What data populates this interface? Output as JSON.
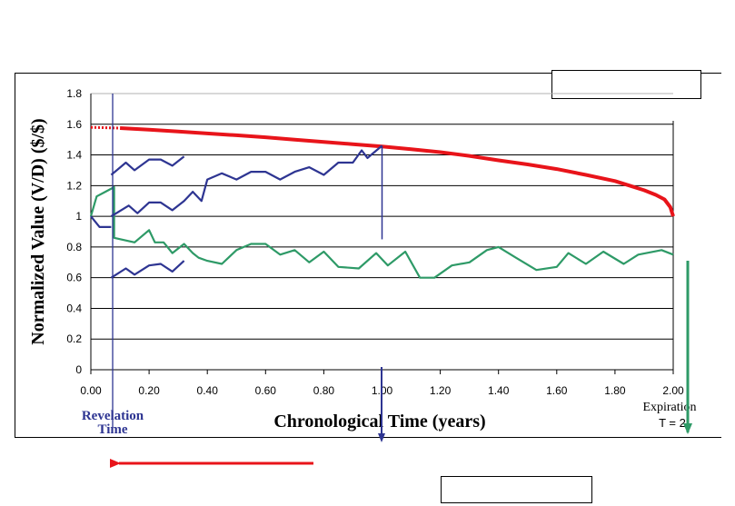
{
  "chart_data": {
    "type": "line",
    "ylabel": "Normalized Value (V/D) ($/$)",
    "xlabel": "Chronological Time (years)",
    "xlim": [
      0,
      2
    ],
    "ylim": [
      0,
      1.8
    ],
    "xticks": [
      "0.00",
      "0.20",
      "0.40",
      "0.60",
      "0.80",
      "1.00",
      "1.20",
      "1.40",
      "1.60",
      "1.80",
      "2.00"
    ],
    "yticks": [
      "0",
      "0.2",
      "0.4",
      "0.6",
      "0.8",
      "1",
      "1.2",
      "1.4",
      "1.6",
      "1.8"
    ],
    "grid": "horizontal",
    "annotations": {
      "revelation_line1": "Revelation",
      "revelation_line2": "Time",
      "expiration_line1": "Expiration",
      "expiration_line2": "T = 2"
    },
    "series": [
      {
        "color": "#e8141a",
        "style": "thick",
        "x": [
          0.0,
          0.1,
          0.2,
          0.3,
          0.4,
          0.5,
          0.6,
          0.7,
          0.8,
          0.9,
          1.0,
          1.1,
          1.2,
          1.3,
          1.4,
          1.5,
          1.6,
          1.7,
          1.8,
          1.85,
          1.9,
          1.94,
          1.97,
          1.99,
          2.0
        ],
        "y": [
          1.58,
          1.575,
          1.565,
          1.553,
          1.54,
          1.528,
          1.515,
          1.5,
          1.485,
          1.47,
          1.455,
          1.437,
          1.418,
          1.394,
          1.365,
          1.338,
          1.308,
          1.27,
          1.23,
          1.2,
          1.17,
          1.14,
          1.11,
          1.06,
          1.0
        ]
      },
      {
        "color": "#2e9a67",
        "x": [
          0.0,
          0.02,
          0.05,
          0.08,
          0.08,
          0.15,
          0.2,
          0.22,
          0.25,
          0.28,
          0.32,
          0.35,
          0.37,
          0.4,
          0.45,
          0.5,
          0.55,
          0.6,
          0.65,
          0.7,
          0.75,
          0.8,
          0.85,
          0.92,
          0.98,
          1.02,
          1.08,
          1.13,
          1.18,
          1.24,
          1.3,
          1.36,
          1.4,
          1.46,
          1.53,
          1.6,
          1.64,
          1.7,
          1.76,
          1.83,
          1.88,
          1.96,
          2.0
        ],
        "y": [
          1.0,
          1.13,
          1.16,
          1.19,
          0.86,
          0.83,
          0.91,
          0.83,
          0.83,
          0.76,
          0.82,
          0.76,
          0.73,
          0.71,
          0.69,
          0.78,
          0.82,
          0.82,
          0.75,
          0.78,
          0.7,
          0.77,
          0.67,
          0.66,
          0.76,
          0.68,
          0.77,
          0.6,
          0.6,
          0.68,
          0.7,
          0.78,
          0.8,
          0.73,
          0.65,
          0.67,
          0.76,
          0.69,
          0.77,
          0.69,
          0.75,
          0.78,
          0.75
        ]
      },
      {
        "color": "#2e3592",
        "x": [
          0.0,
          0.03,
          0.07
        ],
        "y": [
          1.0,
          0.93,
          0.93
        ]
      },
      {
        "color": "#2e3592",
        "x": [
          0.07,
          0.12,
          0.15,
          0.2,
          0.24,
          0.28,
          0.32
        ],
        "y": [
          1.27,
          1.35,
          1.3,
          1.37,
          1.37,
          1.33,
          1.39
        ]
      },
      {
        "color": "#2e3592",
        "x": [
          0.07,
          0.13,
          0.16,
          0.2,
          0.24,
          0.28,
          0.32,
          0.35,
          0.38,
          0.4,
          0.45,
          0.5,
          0.55,
          0.6,
          0.65,
          0.7,
          0.75,
          0.8,
          0.85,
          0.9,
          0.93,
          0.95,
          1.0
        ],
        "y": [
          1.0,
          1.07,
          1.02,
          1.09,
          1.09,
          1.04,
          1.1,
          1.16,
          1.1,
          1.24,
          1.28,
          1.24,
          1.29,
          1.29,
          1.24,
          1.29,
          1.32,
          1.27,
          1.35,
          1.35,
          1.43,
          1.38,
          1.46
        ]
      },
      {
        "color": "#2e3592",
        "x": [
          0.07,
          0.12,
          0.15,
          0.2,
          0.24,
          0.28,
          0.32
        ],
        "y": [
          0.6,
          0.66,
          0.62,
          0.68,
          0.69,
          0.64,
          0.71
        ]
      }
    ]
  }
}
